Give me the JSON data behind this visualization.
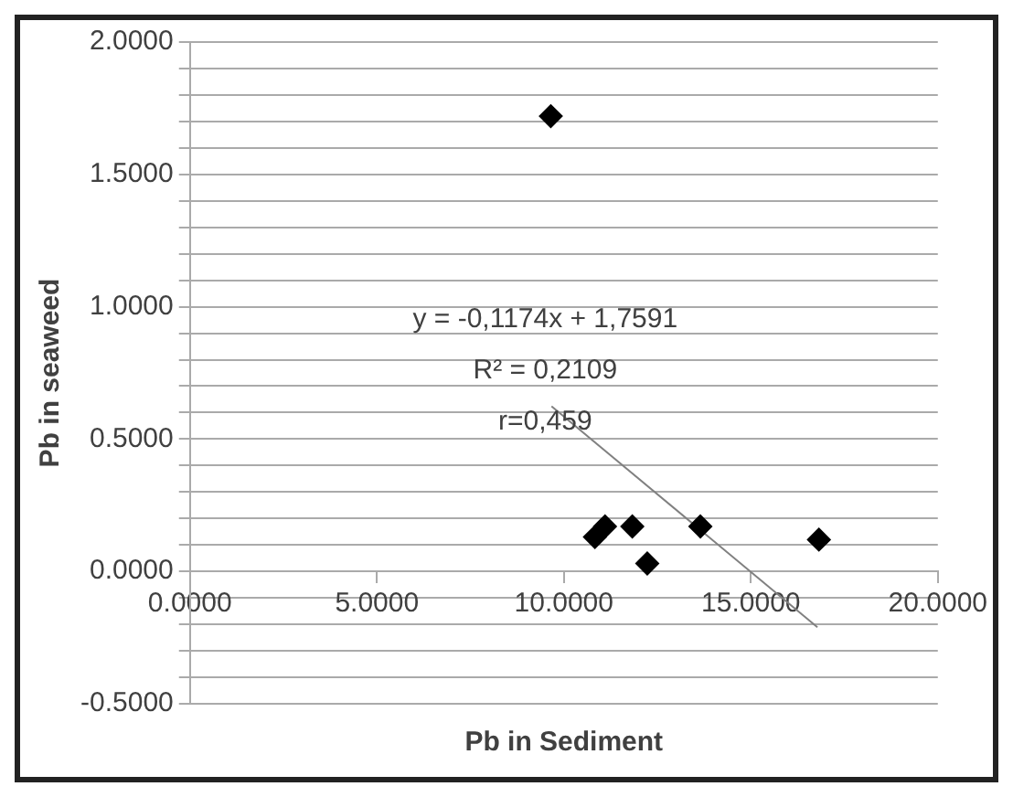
{
  "chart_data": {
    "type": "scatter",
    "xlabel": "Pb in Sediment",
    "ylabel": "Pb in seaweed",
    "x": [
      9.65,
      10.83,
      11.1,
      11.83,
      12.23,
      13.65,
      16.82
    ],
    "series": [
      {
        "color": "#000000",
        "marker": "diamond",
        "values": [
          1.72,
          0.13,
          0.17,
          0.17,
          0.03,
          0.17,
          0.12
        ]
      },
      {
        "type": "line",
        "color": "#808080",
        "marker": "none",
        "x": [
          9.67,
          16.78
        ],
        "values": [
          0.624,
          -0.211
        ]
      }
    ],
    "annotations": [
      "y = -0,1174x + 1,7591",
      "R² = 0,2109",
      "r=0,459"
    ],
    "xlim": [
      0,
      20
    ],
    "xticks": [
      {
        "value": 0,
        "label": "0.0000"
      },
      {
        "value": 5,
        "label": "5.0000"
      },
      {
        "value": 10,
        "label": "10.0000"
      },
      {
        "value": 15,
        "label": "15.0000"
      },
      {
        "value": 20,
        "label": "20.0000"
      }
    ],
    "ylim": [
      -0.5,
      2
    ],
    "yticks": [
      {
        "value": -0.5,
        "label": "-0.5000"
      },
      {
        "value": -0.4,
        "label": null
      },
      {
        "value": -0.3,
        "label": null
      },
      {
        "value": -0.2,
        "label": null
      },
      {
        "value": -0.1,
        "label": null
      },
      {
        "value": 0,
        "label": "0.0000"
      },
      {
        "value": 0.1,
        "label": null
      },
      {
        "value": 0.2,
        "label": null
      },
      {
        "value": 0.3,
        "label": null
      },
      {
        "value": 0.4,
        "label": null
      },
      {
        "value": 0.5,
        "label": "0.5000"
      },
      {
        "value": 0.6,
        "label": null
      },
      {
        "value": 0.7,
        "label": null
      },
      {
        "value": 0.8,
        "label": null
      },
      {
        "value": 0.9,
        "label": null
      },
      {
        "value": 1,
        "label": "1.0000"
      },
      {
        "value": 1.1,
        "label": null
      },
      {
        "value": 1.2,
        "label": null
      },
      {
        "value": 1.3,
        "label": null
      },
      {
        "value": 1.4,
        "label": null
      },
      {
        "value": 1.5,
        "label": "1.5000"
      },
      {
        "value": 1.6,
        "label": null
      },
      {
        "value": 1.7,
        "label": null
      },
      {
        "value": 1.8,
        "label": null
      },
      {
        "value": 1.9,
        "label": null
      },
      {
        "value": 2,
        "label": "2.0000"
      }
    ],
    "grid": "y",
    "legend": false
  }
}
